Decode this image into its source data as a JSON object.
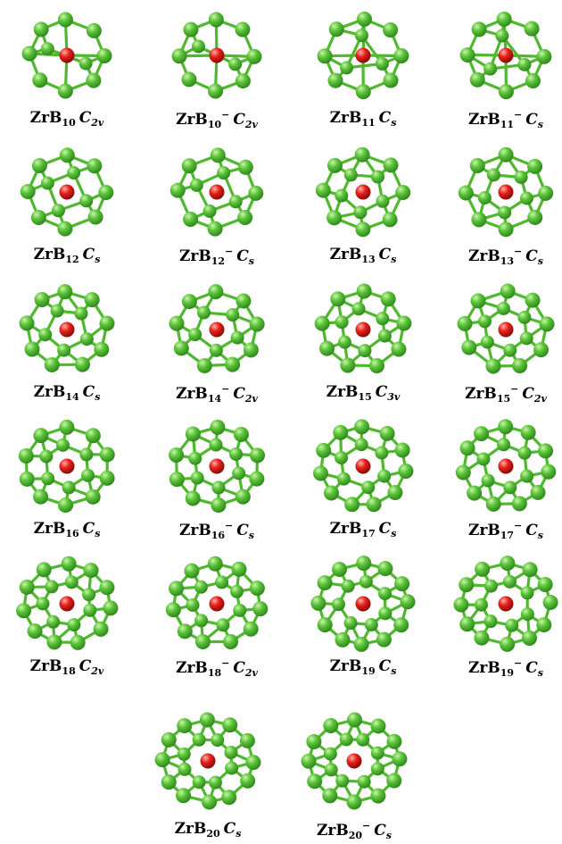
{
  "colors": {
    "boron": "#5cc43a",
    "boron_dark": "#2f8a1c",
    "zirconium": "#e8201a",
    "zirconium_dark": "#8a0c08",
    "bond": "#4fb82e"
  },
  "clusters": [
    {
      "id": "zrb10",
      "formula": "ZrB",
      "n": "10",
      "charge": "",
      "symmetry": "C",
      "symmetry_sub": "2v",
      "atoms": 10
    },
    {
      "id": "zrb10m",
      "formula": "ZrB",
      "n": "10",
      "charge": "−",
      "symmetry": "C",
      "symmetry_sub": "2v",
      "atoms": 10
    },
    {
      "id": "zrb11",
      "formula": "ZrB",
      "n": "11",
      "charge": "",
      "symmetry": "C",
      "symmetry_sub": "s",
      "atoms": 11
    },
    {
      "id": "zrb11m",
      "formula": "ZrB",
      "n": "11",
      "charge": "−",
      "symmetry": "C",
      "symmetry_sub": "s",
      "atoms": 11
    },
    {
      "id": "zrb12",
      "formula": "ZrB",
      "n": "12",
      "charge": "",
      "symmetry": "C",
      "symmetry_sub": "s",
      "atoms": 12
    },
    {
      "id": "zrb12m",
      "formula": "ZrB",
      "n": "12",
      "charge": "−",
      "symmetry": "C",
      "symmetry_sub": "s",
      "atoms": 12
    },
    {
      "id": "zrb13",
      "formula": "ZrB",
      "n": "13",
      "charge": "",
      "symmetry": "C",
      "symmetry_sub": "s",
      "atoms": 13
    },
    {
      "id": "zrb13m",
      "formula": "ZrB",
      "n": "13",
      "charge": "−",
      "symmetry": "C",
      "symmetry_sub": "s",
      "atoms": 13
    },
    {
      "id": "zrb14",
      "formula": "ZrB",
      "n": "14",
      "charge": "",
      "symmetry": "C",
      "symmetry_sub": "s",
      "atoms": 14
    },
    {
      "id": "zrb14m",
      "formula": "ZrB",
      "n": "14",
      "charge": "−",
      "symmetry": "C",
      "symmetry_sub": "2v",
      "atoms": 14
    },
    {
      "id": "zrb15",
      "formula": "ZrB",
      "n": "15",
      "charge": "",
      "symmetry": "C",
      "symmetry_sub": "3v",
      "atoms": 15
    },
    {
      "id": "zrb15m",
      "formula": "ZrB",
      "n": "15",
      "charge": "−",
      "symmetry": "C",
      "symmetry_sub": "2v",
      "atoms": 15
    },
    {
      "id": "zrb16",
      "formula": "ZrB",
      "n": "16",
      "charge": "",
      "symmetry": "C",
      "symmetry_sub": "s",
      "atoms": 16
    },
    {
      "id": "zrb16m",
      "formula": "ZrB",
      "n": "16",
      "charge": "−",
      "symmetry": "C",
      "symmetry_sub": "s",
      "atoms": 16
    },
    {
      "id": "zrb17",
      "formula": "ZrB",
      "n": "17",
      "charge": "",
      "symmetry": "C",
      "symmetry_sub": "s",
      "atoms": 17
    },
    {
      "id": "zrb17m",
      "formula": "ZrB",
      "n": "17",
      "charge": "−",
      "symmetry": "C",
      "symmetry_sub": "s",
      "atoms": 17
    },
    {
      "id": "zrb18",
      "formula": "ZrB",
      "n": "18",
      "charge": "",
      "symmetry": "C",
      "symmetry_sub": "2v",
      "atoms": 18
    },
    {
      "id": "zrb18m",
      "formula": "ZrB",
      "n": "18",
      "charge": "−",
      "symmetry": "C",
      "symmetry_sub": "2v",
      "atoms": 18
    },
    {
      "id": "zrb19",
      "formula": "ZrB",
      "n": "19",
      "charge": "",
      "symmetry": "C",
      "symmetry_sub": "s",
      "atoms": 19
    },
    {
      "id": "zrb19m",
      "formula": "ZrB",
      "n": "19",
      "charge": "−",
      "symmetry": "C",
      "symmetry_sub": "s",
      "atoms": 19
    },
    {
      "id": "zrb20",
      "formula": "ZrB",
      "n": "20",
      "charge": "",
      "symmetry": "C",
      "symmetry_sub": "s",
      "atoms": 20
    },
    {
      "id": "zrb20m",
      "formula": "ZrB",
      "n": "20",
      "charge": "−",
      "symmetry": "C",
      "symmetry_sub": "s",
      "atoms": 20
    }
  ]
}
